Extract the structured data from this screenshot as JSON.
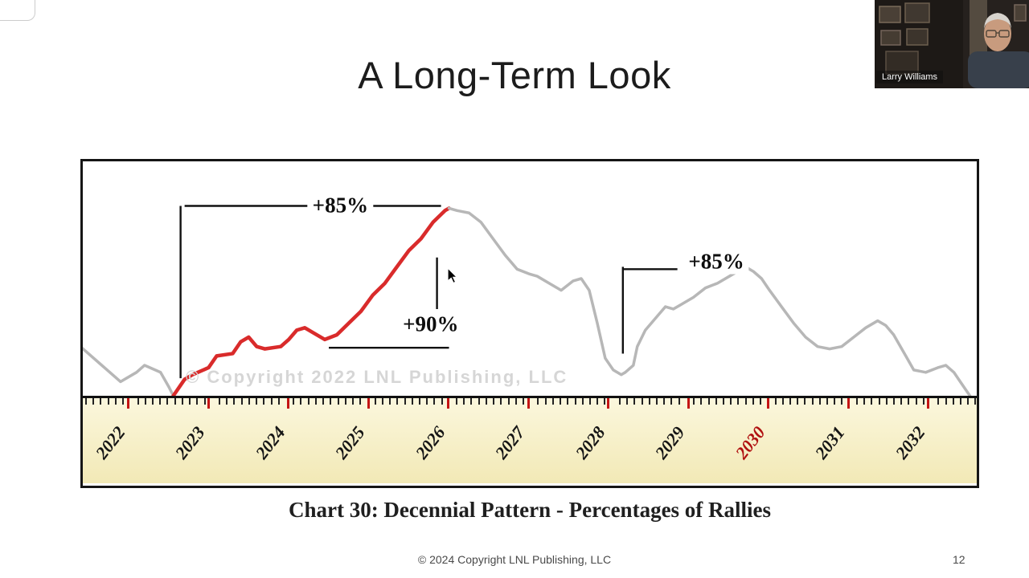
{
  "slide": {
    "title": "A Long-Term Look",
    "caption": "Chart 30: Decennial Pattern - Percentages of Rallies",
    "footer_text": "© 2024 Copyright LNL Publishing, LLC",
    "page_number": "12"
  },
  "webcam": {
    "name_label": "Larry Williams"
  },
  "colors": {
    "rally_red": "#d92b2b",
    "pattern_gray": "#b7b7b7",
    "annotation_black": "#101010",
    "tick_red": "#c41414",
    "tick_black": "#222222",
    "year_highlight_red": "#b01111",
    "axis_band_yellow": "#f2e9b6"
  },
  "chart_data": {
    "type": "line",
    "title": "Chart 30: Decennial Pattern - Percentages of Rallies",
    "watermark": "© Copyright 2022 LNL Publishing, LLC",
    "x_tick_labels": [
      "2022",
      "2023",
      "2024",
      "2025",
      "2026",
      "2027",
      "2028",
      "2029",
      "2030",
      "2031",
      "2032"
    ],
    "highlighted_tick": "2030",
    "x_range": [
      2021.4,
      2032.5
    ],
    "y_range": [
      0,
      100
    ],
    "y_axis_label": "",
    "grid": false,
    "legend": false,
    "series": [
      {
        "name": "pattern-before-rally",
        "color": "#b7b7b7",
        "width": 3.5,
        "points": [
          [
            2021.4,
            21
          ],
          [
            2021.7,
            12
          ],
          [
            2021.9,
            6
          ],
          [
            2022.1,
            10
          ],
          [
            2022.2,
            13
          ],
          [
            2022.4,
            10
          ],
          [
            2022.5,
            4
          ],
          [
            2022.56,
            0
          ]
        ]
      },
      {
        "name": "rally-2022-2026-red",
        "color": "#d92b2b",
        "width": 4.5,
        "points": [
          [
            2022.56,
            0
          ],
          [
            2022.7,
            7
          ],
          [
            2022.8,
            9
          ],
          [
            2023.0,
            12
          ],
          [
            2023.1,
            17
          ],
          [
            2023.3,
            18
          ],
          [
            2023.4,
            23
          ],
          [
            2023.5,
            25
          ],
          [
            2023.6,
            21
          ],
          [
            2023.7,
            20
          ],
          [
            2023.9,
            21
          ],
          [
            2024.0,
            24
          ],
          [
            2024.1,
            28
          ],
          [
            2024.2,
            29
          ],
          [
            2024.3,
            27
          ],
          [
            2024.45,
            24
          ],
          [
            2024.6,
            26
          ],
          [
            2024.75,
            31
          ],
          [
            2024.9,
            36
          ],
          [
            2025.05,
            43
          ],
          [
            2025.2,
            48
          ],
          [
            2025.35,
            55
          ],
          [
            2025.5,
            62
          ],
          [
            2025.65,
            67
          ],
          [
            2025.8,
            74
          ],
          [
            2025.95,
            79
          ],
          [
            2026.0,
            80
          ]
        ]
      },
      {
        "name": "pattern-after-rally",
        "color": "#b7b7b7",
        "width": 3.5,
        "points": [
          [
            2026.0,
            80
          ],
          [
            2026.1,
            79
          ],
          [
            2026.25,
            78
          ],
          [
            2026.4,
            74
          ],
          [
            2026.55,
            67
          ],
          [
            2026.7,
            60
          ],
          [
            2026.85,
            54
          ],
          [
            2027.0,
            52
          ],
          [
            2027.1,
            51
          ],
          [
            2027.25,
            48
          ],
          [
            2027.4,
            45
          ],
          [
            2027.55,
            49
          ],
          [
            2027.65,
            50
          ],
          [
            2027.75,
            45
          ],
          [
            2027.85,
            31
          ],
          [
            2027.95,
            16
          ],
          [
            2028.05,
            11
          ],
          [
            2028.15,
            9
          ],
          [
            2028.2,
            10
          ],
          [
            2028.3,
            13
          ],
          [
            2028.35,
            21
          ],
          [
            2028.45,
            28
          ],
          [
            2028.6,
            34
          ],
          [
            2028.7,
            38
          ],
          [
            2028.8,
            37
          ],
          [
            2028.9,
            39
          ],
          [
            2029.05,
            42
          ],
          [
            2029.2,
            46
          ],
          [
            2029.35,
            48
          ],
          [
            2029.5,
            51
          ],
          [
            2029.6,
            53
          ],
          [
            2029.7,
            55
          ],
          [
            2029.8,
            53
          ],
          [
            2029.9,
            50
          ],
          [
            2030.0,
            45
          ],
          [
            2030.15,
            38
          ],
          [
            2030.3,
            31
          ],
          [
            2030.45,
            25
          ],
          [
            2030.6,
            21
          ],
          [
            2030.75,
            20
          ],
          [
            2030.9,
            21
          ],
          [
            2031.05,
            25
          ],
          [
            2031.2,
            29
          ],
          [
            2031.35,
            32
          ],
          [
            2031.45,
            30
          ],
          [
            2031.55,
            26
          ],
          [
            2031.7,
            17
          ],
          [
            2031.8,
            11
          ],
          [
            2031.95,
            10
          ],
          [
            2032.1,
            12
          ],
          [
            2032.2,
            13
          ],
          [
            2032.3,
            10
          ],
          [
            2032.4,
            5
          ],
          [
            2032.5,
            0
          ]
        ]
      }
    ],
    "annotations": [
      {
        "label": "+85%",
        "label_pos": [
          2024.65,
          81
        ],
        "lines": [
          [
            2022.7,
            81,
            2025.9,
            81
          ],
          [
            2022.65,
            81,
            2022.65,
            7.5
          ]
        ]
      },
      {
        "label": "+90%",
        "label_pos": [
          2025.78,
          30
        ],
        "lines": [
          [
            2025.85,
            59,
            2025.85,
            37
          ],
          [
            2024.5,
            20.5,
            2026.0,
            20.5
          ]
        ]
      },
      {
        "label": "+85%",
        "label_pos": [
          2029.35,
          57
        ],
        "lines": [
          [
            2028.17,
            54,
            2028.85,
            54
          ],
          [
            2028.17,
            55,
            2028.17,
            18
          ]
        ]
      }
    ]
  }
}
